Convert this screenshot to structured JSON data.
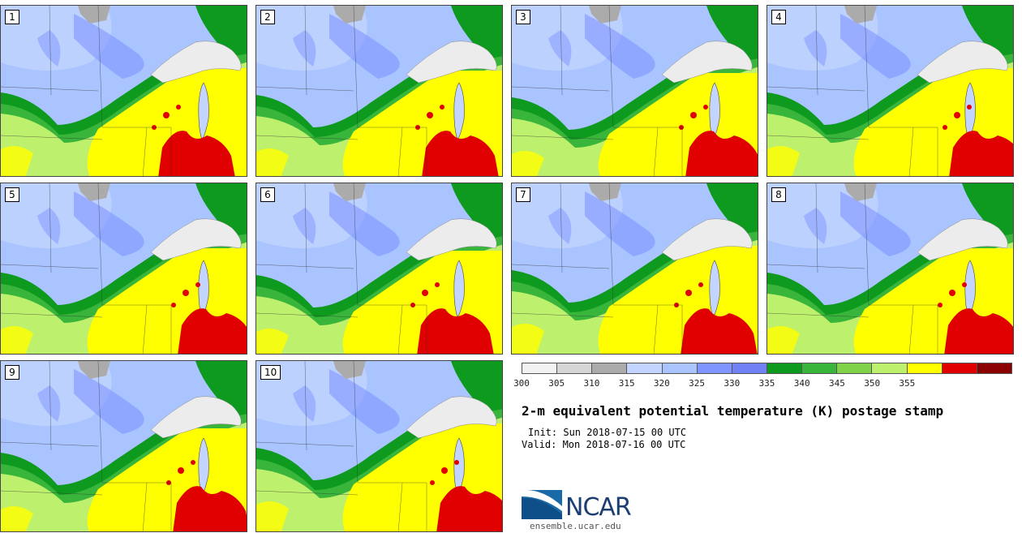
{
  "panels": [
    {
      "label": "1"
    },
    {
      "label": "2"
    },
    {
      "label": "3"
    },
    {
      "label": "4"
    },
    {
      "label": "5"
    },
    {
      "label": "6"
    },
    {
      "label": "7"
    },
    {
      "label": "8"
    },
    {
      "label": "9"
    },
    {
      "label": "10"
    }
  ],
  "colorbar": {
    "colors": [
      "#f2f2f2",
      "#d6d6d6",
      "#ababab",
      "#c2d4ff",
      "#a9c4ff",
      "#7f95ff",
      "#7081f5",
      "#0e9a1e",
      "#39b53b",
      "#7fd24a",
      "#bdf06c",
      "#ffff00",
      "#e00000",
      "#8b0000"
    ],
    "tick_labels": [
      "300",
      "305",
      "310",
      "315",
      "320",
      "325",
      "330",
      "335",
      "340",
      "345",
      "350",
      "355"
    ]
  },
  "title": "2-m equivalent potential temperature (K) postage stamp",
  "init": "Init: Sun 2018-07-15 00 UTC",
  "valid": "Valid: Mon 2018-07-16 00 UTC",
  "logo": {
    "text": "NCAR",
    "url": "ensemble.ucar.edu"
  }
}
